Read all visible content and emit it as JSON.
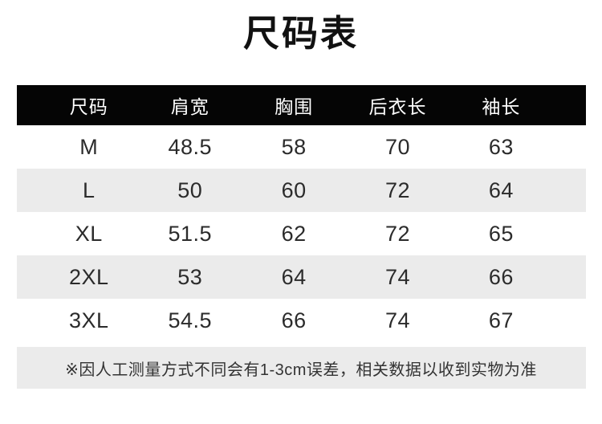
{
  "chart_data": {
    "type": "table",
    "title": "尺码表",
    "unit_note": "※因人工测量方式不同会有1-3cm误差，相关数据以收到实物为准",
    "columns": [
      "尺码",
      "肩宽",
      "胸围",
      "后衣长",
      "袖长"
    ],
    "rows": [
      [
        "M",
        "48.5",
        "58",
        "70",
        "63"
      ],
      [
        "L",
        "50",
        "60",
        "72",
        "64"
      ],
      [
        "XL",
        "51.5",
        "62",
        "72",
        "65"
      ],
      [
        "2XL",
        "53",
        "64",
        "74",
        "66"
      ],
      [
        "3XL",
        "54.5",
        "66",
        "74",
        "67"
      ]
    ],
    "layout": {
      "legend": "none",
      "grid": "off",
      "row_striping": "alternate rows shaded"
    },
    "colors": {
      "background": "#ffffff",
      "header_bg": "#050505",
      "header_text": "#ffffff",
      "row_alt_bg": "#ebebeb",
      "body_text": "#2b2b2b",
      "title_text": "#111111"
    }
  }
}
